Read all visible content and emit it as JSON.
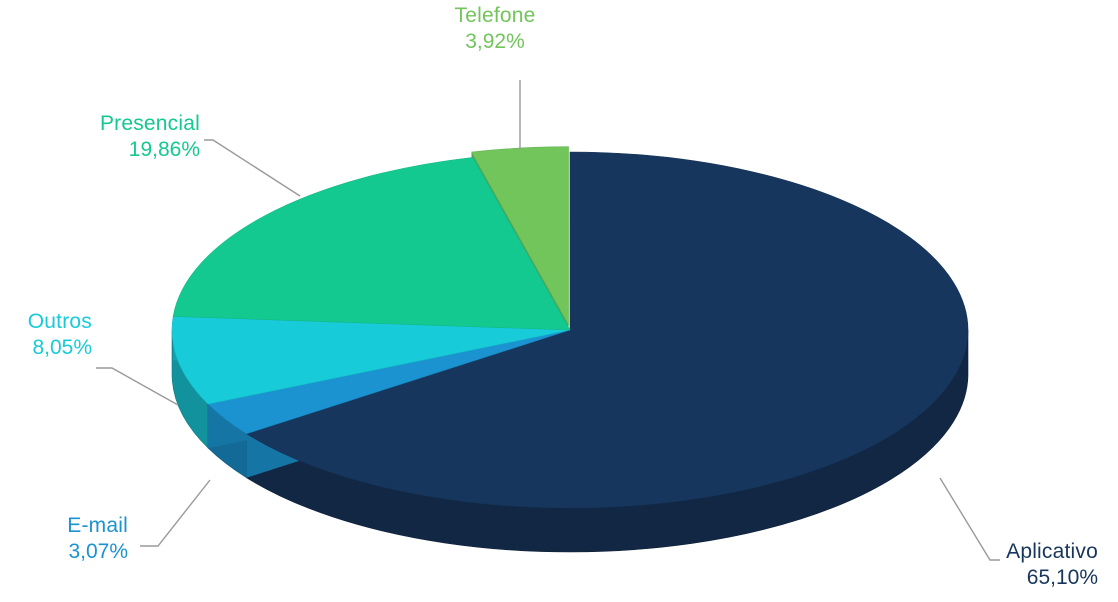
{
  "chart_data": {
    "type": "pie",
    "style": "3d",
    "slices": [
      {
        "name": "Aplicativo",
        "value": 65.1,
        "label": "65,10%",
        "color": "#17365d"
      },
      {
        "name": "E-mail",
        "value": 3.07,
        "label": "3,07%",
        "color": "#1a93d0"
      },
      {
        "name": "Outros",
        "value": 8.05,
        "label": "8,05%",
        "color": "#18cbd9"
      },
      {
        "name": "Presencial",
        "value": 19.86,
        "label": "19,86%",
        "color": "#14c98f"
      },
      {
        "name": "Telefone",
        "value": 3.92,
        "label": "3,92%",
        "color": "#71c55b"
      }
    ],
    "exploded_slice": "Telefone",
    "label_colors": {
      "Aplicativo": "#17365d",
      "E-mail": "#1a93d0",
      "Outros": "#18cbd9",
      "Presencial": "#14c98f",
      "Telefone": "#71c55b"
    }
  }
}
